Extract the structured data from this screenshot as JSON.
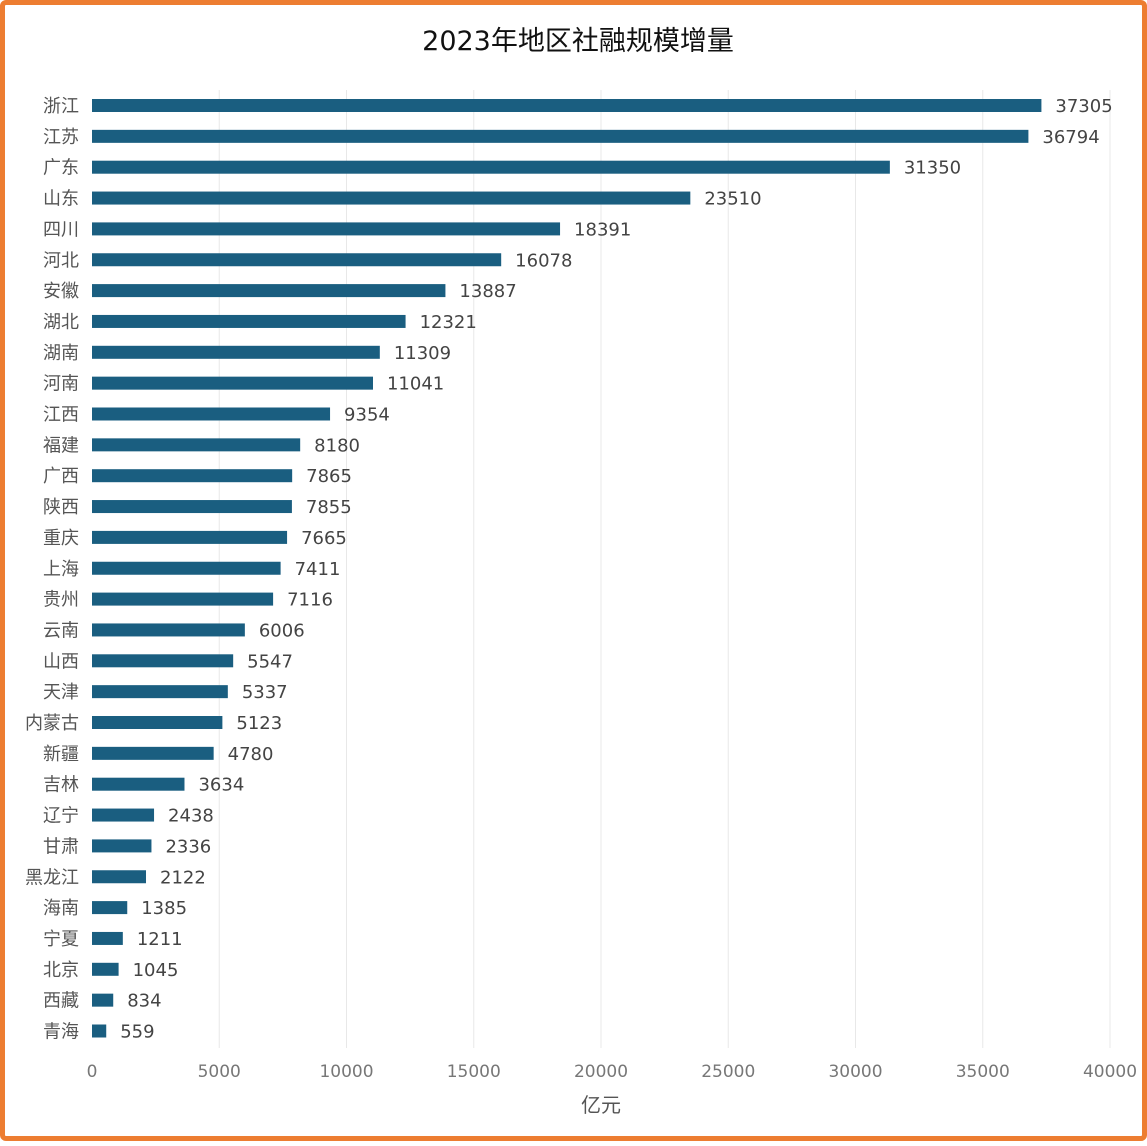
{
  "colors": {
    "bar": "#1A5E80",
    "frame": "#ED7D31",
    "grid": "#E8E8E8",
    "background": "#FFFFFF"
  },
  "chart_data": {
    "type": "bar",
    "orientation": "horizontal",
    "title": "2023年地区社融规模增量",
    "xlabel": "亿元",
    "ylabel": "",
    "xlim": [
      0,
      40000
    ],
    "xticks": [
      0,
      5000,
      10000,
      15000,
      20000,
      25000,
      30000,
      35000,
      40000
    ],
    "grid": true,
    "legend": "none",
    "categories": [
      "浙江",
      "江苏",
      "广东",
      "山东",
      "四川",
      "河北",
      "安徽",
      "湖北",
      "湖南",
      "河南",
      "江西",
      "福建",
      "广西",
      "陕西",
      "重庆",
      "上海",
      "贵州",
      "云南",
      "山西",
      "天津",
      "内蒙古",
      "新疆",
      "吉林",
      "辽宁",
      "甘肃",
      "黑龙江",
      "海南",
      "宁夏",
      "北京",
      "西藏",
      "青海"
    ],
    "values": [
      37305,
      36794,
      31350,
      23510,
      18391,
      16078,
      13887,
      12321,
      11309,
      11041,
      9354,
      8180,
      7865,
      7855,
      7665,
      7411,
      7116,
      6006,
      5547,
      5337,
      5123,
      4780,
      3634,
      2438,
      2336,
      2122,
      1385,
      1211,
      1045,
      834,
      559
    ]
  }
}
